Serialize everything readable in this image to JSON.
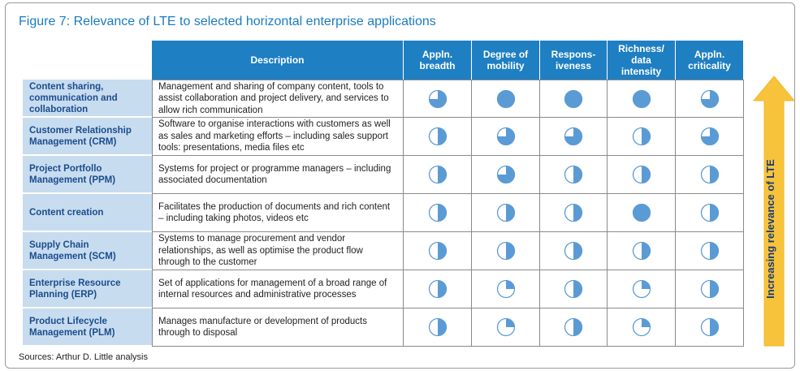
{
  "title": "Figure 7: Relevance of LTE to selected horizontal enterprise applications",
  "sources": "Sources: Arthur D. Little analysis",
  "arrow_label": "Increasing relevance of LTE",
  "colors": {
    "header": "#1f7fc3",
    "row_label_bg": "#c8dcef",
    "fill": "#5b9bd5",
    "arrow": "#f6c33a"
  },
  "chart_data": {
    "type": "table",
    "columns": [
      "Description",
      "Appln. breadth",
      "Degree of mobility",
      "Respons-iveness",
      "Richness/ data intensity",
      "Appln. criticality"
    ],
    "value_scale": "Harvey ball fill fraction (0.25, 0.5, 0.75, 1.0)",
    "rows": [
      {
        "name": "Content sharing, communication and collaboration",
        "description": "Management and sharing of company content, tools to assist collaboration and project delivery, and services to allow rich communication",
        "values": [
          0.75,
          1.0,
          1.0,
          1.0,
          0.75
        ]
      },
      {
        "name": "Customer Relationship Management (CRM)",
        "description": "Software to organise interactions with customers as well as sales and marketing efforts – including sales support tools: presentations, media files etc",
        "values": [
          0.5,
          0.75,
          0.75,
          0.5,
          0.75
        ]
      },
      {
        "name": "Project Portfollo Management (PPM)",
        "description": "Systems for project or programme managers – including associated documentation",
        "values": [
          0.5,
          0.75,
          0.5,
          0.5,
          0.5
        ]
      },
      {
        "name": "Content creation",
        "description": "Facilitates the production of documents and rich content – including taking photos, videos etc",
        "values": [
          0.5,
          0.5,
          0.5,
          1.0,
          0.5
        ]
      },
      {
        "name": "Supply Chain Management (SCM)",
        "description": "Systems to manage procurement and vendor relationships, as well as optimise the product flow through to the customer",
        "values": [
          0.5,
          0.5,
          0.5,
          0.5,
          0.5
        ]
      },
      {
        "name": "Enterprise Resource Planning (ERP)",
        "description": "Set of applications for management of a broad range of internal resources and administrative processes",
        "values": [
          0.5,
          0.25,
          0.5,
          0.25,
          0.5
        ]
      },
      {
        "name": "Product Lifecycle Management (PLM)",
        "description": "Manages manufacture or development of products through to disposal",
        "values": [
          0.5,
          0.25,
          0.5,
          0.25,
          0.5
        ]
      }
    ]
  }
}
